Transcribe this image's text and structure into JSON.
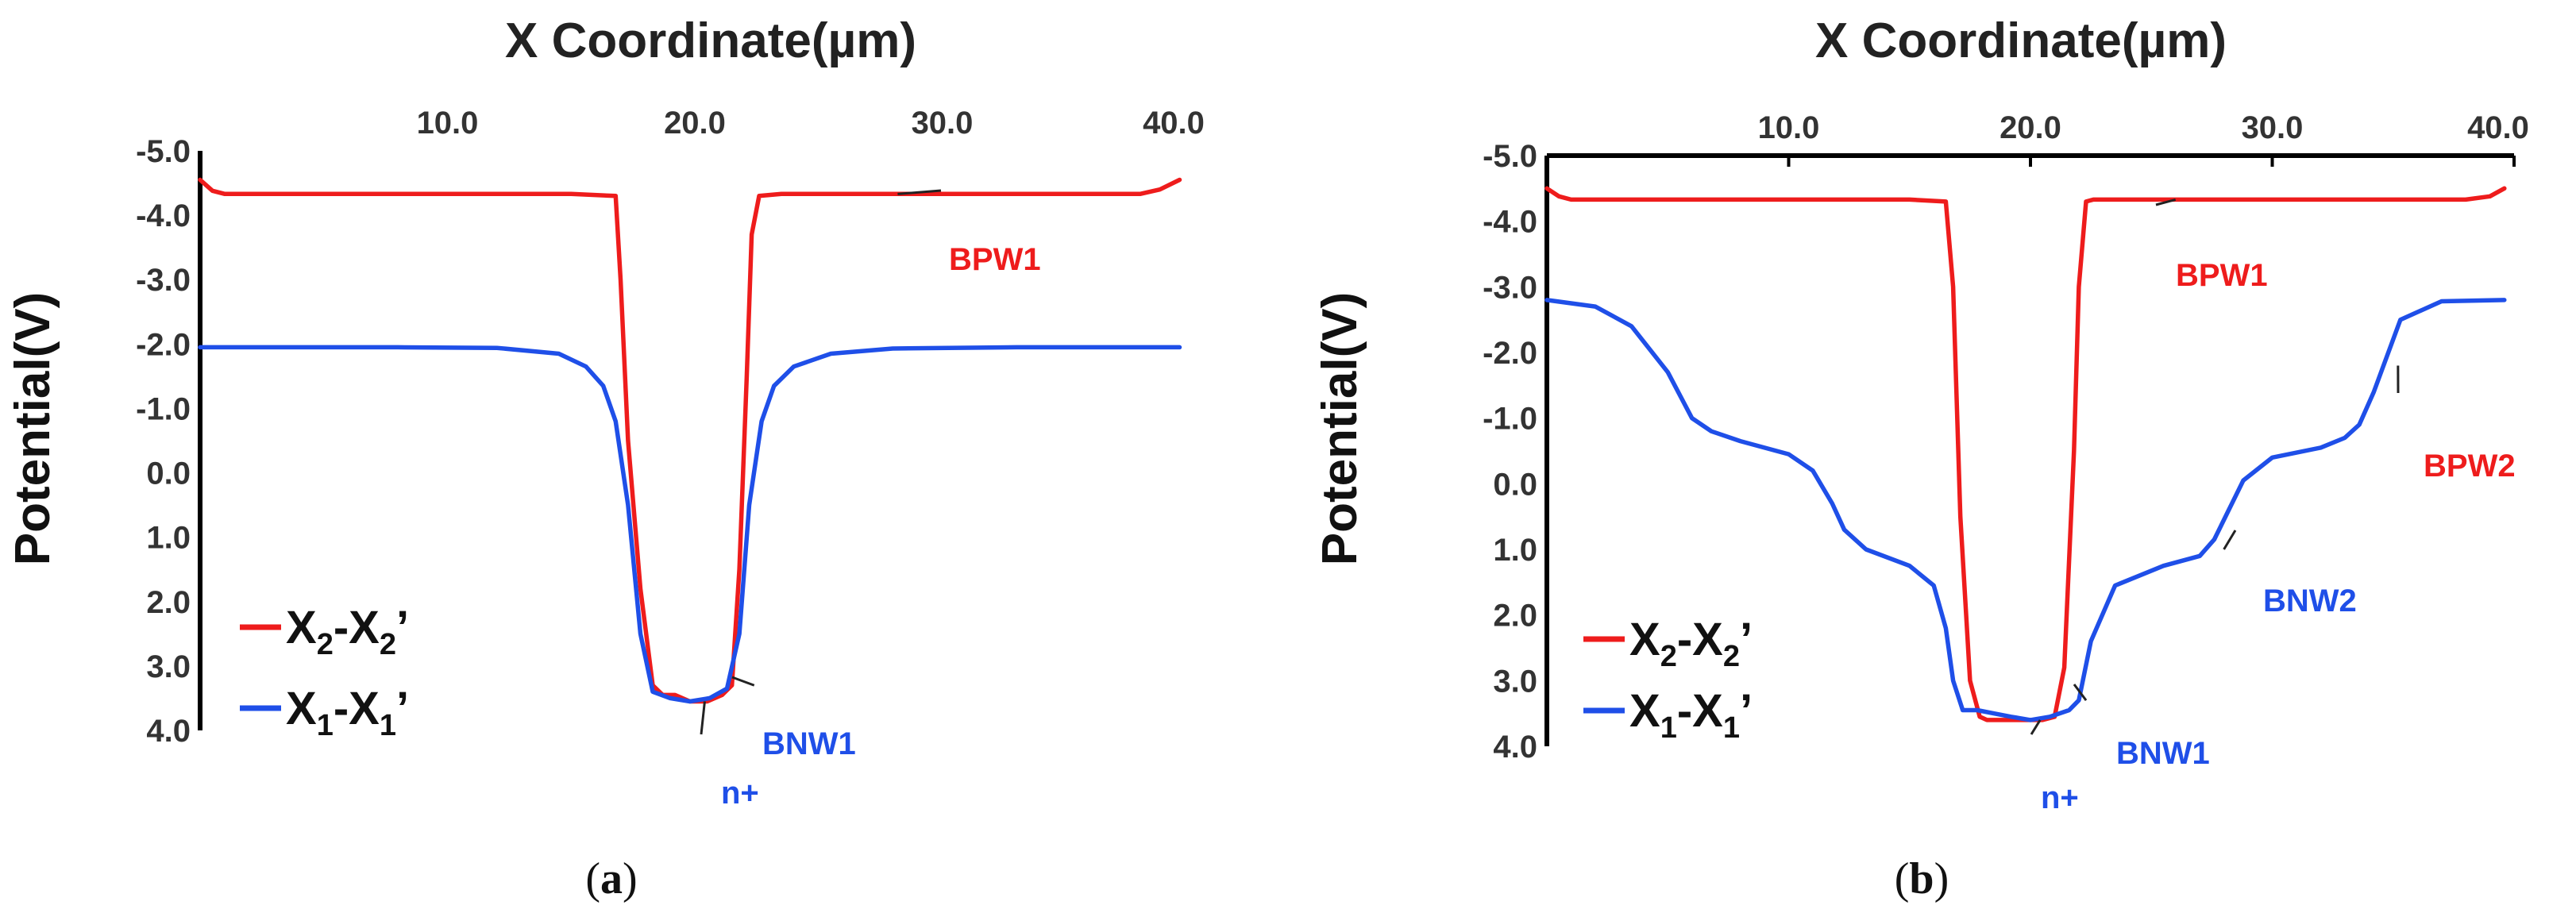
{
  "chart_data": [
    {
      "panel_label": "(a)",
      "panel_letter": "a",
      "type": "line",
      "xlabel": "X Coordinate(µm)",
      "ylabel": "Potential(V)",
      "xlim": [
        0,
        40
      ],
      "ylim": [
        -5.0,
        4.0
      ],
      "y_inverted": true,
      "x_ticks": [
        10,
        20,
        30,
        40
      ],
      "x_tick_labels": [
        "10.0",
        "20.0",
        "30.0",
        "40.0"
      ],
      "y_ticks": [
        -5,
        -4,
        -3,
        -2,
        -1,
        0,
        1,
        2,
        3,
        4
      ],
      "y_tick_labels": [
        "-5.0",
        "-4.0",
        "-3.0",
        "-2.0",
        "-1.0",
        "0.0",
        "1.0",
        "2.0",
        "3.0",
        "4.0"
      ],
      "legend": [
        {
          "series": "X2-X2'",
          "main": "X",
          "sub": "2",
          "mid": "-X",
          "sub2": "2",
          "tail": "’",
          "color": "#ee1c1c"
        },
        {
          "series": "X1-X1'",
          "main": "X",
          "sub": "1",
          "mid": "-X",
          "sub2": "1",
          "tail": "’",
          "color": "#1f4fe8"
        }
      ],
      "series": [
        {
          "name": "X2-X2'",
          "color": "#ee1c1c",
          "x": [
            0.0,
            0.5,
            1.0,
            4.0,
            8.0,
            12.0,
            15.0,
            16.8,
            17.0,
            17.3,
            17.8,
            18.3,
            18.7,
            19.2,
            19.8,
            20.5,
            21.1,
            21.5,
            21.8,
            22.1,
            22.3,
            22.6,
            23.5,
            27.0,
            31.0,
            35.0,
            38.0,
            38.8,
            39.6
          ],
          "values": [
            -4.55,
            -4.38,
            -4.33,
            -4.33,
            -4.33,
            -4.33,
            -4.33,
            -4.3,
            -3.0,
            -0.5,
            1.8,
            3.3,
            3.45,
            3.45,
            3.55,
            3.55,
            3.45,
            3.3,
            1.5,
            -1.5,
            -3.7,
            -4.3,
            -4.33,
            -4.33,
            -4.33,
            -4.33,
            -4.33,
            -4.4,
            -4.55
          ]
        },
        {
          "name": "X1-X1'",
          "color": "#1f4fe8",
          "x": [
            0.0,
            3.0,
            8.0,
            12.0,
            14.5,
            15.6,
            16.3,
            16.8,
            17.3,
            17.8,
            18.3,
            19.0,
            19.8,
            20.6,
            21.3,
            21.8,
            22.2,
            22.7,
            23.2,
            24.0,
            25.5,
            28.0,
            33.0,
            39.6
          ],
          "values": [
            -1.95,
            -1.95,
            -1.95,
            -1.94,
            -1.85,
            -1.65,
            -1.35,
            -0.8,
            0.5,
            2.5,
            3.4,
            3.5,
            3.55,
            3.5,
            3.35,
            2.5,
            0.5,
            -0.8,
            -1.35,
            -1.65,
            -1.85,
            -1.93,
            -1.95,
            -1.95
          ]
        }
      ],
      "annotations": [
        {
          "text": "BPW1",
          "color": "#ee1c1c",
          "at": [
            28.2,
            -4.33
          ]
        },
        {
          "text": "BNW1",
          "color": "#1f4fe8",
          "at": [
            22.4,
            3.3
          ]
        },
        {
          "text": "n+",
          "color": "#1f4fe8",
          "at": [
            20.4,
            3.55
          ]
        }
      ]
    },
    {
      "panel_label": "(b)",
      "panel_letter": "b",
      "type": "line",
      "xlabel": "X Coordinate(µm)",
      "ylabel": "Potential(V)",
      "xlim": [
        0,
        40
      ],
      "ylim": [
        -5.0,
        4.0
      ],
      "y_inverted": true,
      "x_ticks": [
        10,
        20,
        30,
        40
      ],
      "x_tick_labels": [
        "10.0",
        "20.0",
        "30.0",
        "40.0"
      ],
      "y_ticks": [
        -5,
        -4,
        -3,
        -2,
        -1,
        0,
        1,
        2,
        3,
        4
      ],
      "y_tick_labels": [
        "-5.0",
        "-4.0",
        "-3.0",
        "-2.0",
        "-1.0",
        "0.0",
        "1.0",
        "2.0",
        "3.0",
        "4.0"
      ],
      "legend": [
        {
          "series": "X2-X2'",
          "main": "X",
          "sub": "2",
          "mid": "-X",
          "sub2": "2",
          "tail": "’",
          "color": "#ee1c1c"
        },
        {
          "series": "X1-X1'",
          "main": "X",
          "sub": "1",
          "mid": "-X",
          "sub2": "1",
          "tail": "’",
          "color": "#1f4fe8"
        }
      ],
      "series": [
        {
          "name": "X2-X2'",
          "color": "#ee1c1c",
          "x": [
            0.0,
            0.5,
            1.0,
            4.0,
            8.0,
            12.0,
            15.0,
            16.5,
            16.8,
            17.1,
            17.5,
            17.9,
            18.2,
            19.0,
            20.0,
            20.5,
            21.0,
            21.4,
            21.8,
            22.0,
            22.3,
            22.6,
            23.5,
            28.0,
            33.0,
            38.0,
            39.0,
            39.6
          ],
          "values": [
            -4.5,
            -4.38,
            -4.33,
            -4.33,
            -4.33,
            -4.33,
            -4.33,
            -4.3,
            -3.0,
            0.5,
            3.0,
            3.55,
            3.6,
            3.6,
            3.6,
            3.6,
            3.55,
            2.8,
            -0.5,
            -3.0,
            -4.3,
            -4.33,
            -4.33,
            -4.33,
            -4.33,
            -4.33,
            -4.38,
            -4.5
          ]
        },
        {
          "name": "X1-X1'",
          "color": "#1f4fe8",
          "x": [
            0.0,
            2.0,
            3.5,
            5.0,
            6.0,
            6.8,
            8.0,
            10.0,
            11.0,
            11.8,
            12.3,
            13.2,
            15.0,
            16.0,
            16.5,
            16.8,
            17.2,
            17.8,
            18.5,
            19.2,
            20.0,
            20.8,
            21.6,
            22.0,
            22.5,
            23.5,
            25.5,
            27.0,
            27.6,
            28.2,
            28.8,
            30.0,
            32.0,
            33.0,
            33.6,
            34.2,
            35.3,
            37.0,
            39.6
          ],
          "values": [
            -2.8,
            -2.7,
            -2.4,
            -1.7,
            -1.0,
            -0.8,
            -0.65,
            -0.45,
            -0.2,
            0.3,
            0.7,
            1.0,
            1.25,
            1.55,
            2.2,
            3.0,
            3.45,
            3.45,
            3.5,
            3.55,
            3.6,
            3.55,
            3.45,
            3.3,
            2.4,
            1.55,
            1.25,
            1.1,
            0.85,
            0.4,
            -0.05,
            -0.4,
            -0.55,
            -0.7,
            -0.9,
            -1.4,
            -2.5,
            -2.78,
            -2.8
          ]
        }
      ],
      "annotations": [
        {
          "text": "BPW1",
          "color": "#ee1c1c",
          "at": [
            26.0,
            -4.33
          ]
        },
        {
          "text": "BPW2",
          "color": "#ee1c1c",
          "at": [
            35.2,
            -1.8
          ]
        },
        {
          "text": "BNW2",
          "color": "#1f4fe8",
          "at": [
            28.0,
            1.0
          ]
        },
        {
          "text": "BNW1",
          "color": "#1f4fe8",
          "at": [
            22.3,
            3.3
          ]
        },
        {
          "text": "n+",
          "color": "#1f4fe8",
          "at": [
            20.4,
            3.6
          ]
        }
      ]
    }
  ]
}
